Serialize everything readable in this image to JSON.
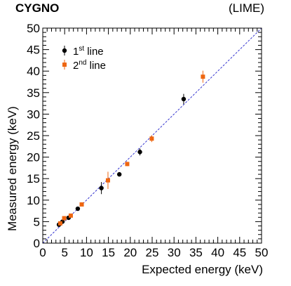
{
  "header": {
    "experiment": "CYGNO",
    "detector": "(LIME)"
  },
  "chart_data": {
    "type": "scatter",
    "xlabel": "Expected energy (keV)",
    "ylabel": "Measured energy (keV)",
    "xlim": [
      0,
      50
    ],
    "ylim": [
      0,
      50
    ],
    "x_ticks": [
      0,
      5,
      10,
      15,
      20,
      25,
      30,
      35,
      40,
      45,
      50
    ],
    "y_ticks": [
      0,
      5,
      10,
      15,
      20,
      25,
      30,
      35,
      40,
      45,
      50
    ],
    "legend_position": "top-left",
    "reference_line": {
      "style": "dashed",
      "color": "#2222cc",
      "from": [
        0,
        0
      ],
      "to": [
        50,
        50
      ]
    },
    "series": [
      {
        "name": "1st line",
        "legend_main": "1",
        "legend_sup": "st",
        "legend_rest": " line",
        "marker": "circle",
        "color": "#000000",
        "points": [
          {
            "x": 3.7,
            "y": 4.3,
            "err": 0.4
          },
          {
            "x": 4.5,
            "y": 5.0,
            "err": 0.4
          },
          {
            "x": 5.9,
            "y": 5.9,
            "err": 0.4
          },
          {
            "x": 8.0,
            "y": 8.0,
            "err": 0.3
          },
          {
            "x": 13.4,
            "y": 12.8,
            "err": 1.4
          },
          {
            "x": 17.5,
            "y": 16.0,
            "err": 0.5
          },
          {
            "x": 22.2,
            "y": 21.2,
            "err": 0.8
          },
          {
            "x": 32.2,
            "y": 33.5,
            "err": 1.2
          }
        ]
      },
      {
        "name": "2nd line",
        "legend_main": "2",
        "legend_sup": "nd",
        "legend_rest": " line",
        "marker": "square",
        "color": "#ee6611",
        "points": [
          {
            "x": 4.0,
            "y": 4.6,
            "err": 0.4
          },
          {
            "x": 4.9,
            "y": 5.8,
            "err": 0.4
          },
          {
            "x": 6.4,
            "y": 6.4,
            "err": 0.4
          },
          {
            "x": 8.9,
            "y": 9.0,
            "err": 0.3
          },
          {
            "x": 14.9,
            "y": 14.6,
            "err": 2.0
          },
          {
            "x": 19.3,
            "y": 18.4,
            "err": 0.5
          },
          {
            "x": 24.9,
            "y": 24.3,
            "err": 0.8
          },
          {
            "x": 36.6,
            "y": 38.7,
            "err": 1.4
          }
        ]
      }
    ]
  }
}
